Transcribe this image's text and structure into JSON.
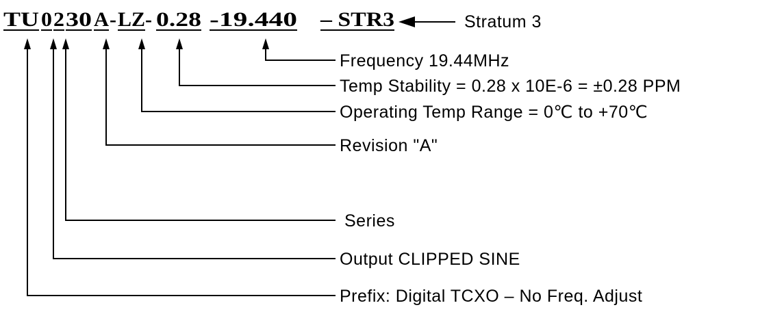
{
  "part_number": [
    "TU",
    "0",
    "2",
    "30",
    "A",
    "-",
    "LZ",
    "-",
    "0.28",
    "-19.440",
    "– STR3"
  ],
  "annotations": {
    "stratum": "Stratum 3",
    "frequency": "Frequency 19.44MHz",
    "temp_stability": "Temp Stability = 0.28 x 10E-6 = ±0.28 PPM",
    "temp_range": "Operating Temp Range = 0℃ to +70℃",
    "revision": "Revision \"A\"",
    "series": "Series",
    "output": "Output CLIPPED SINE",
    "prefix": "Prefix: Digital TCXO – No Freq. Adjust"
  }
}
